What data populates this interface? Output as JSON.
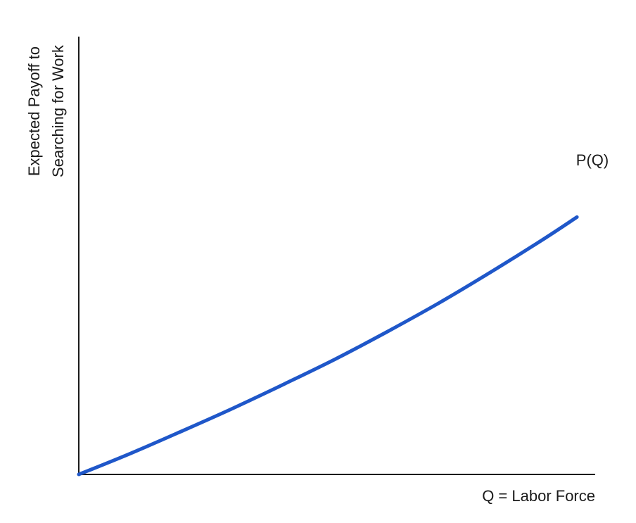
{
  "chart_data": {
    "type": "line",
    "title": "",
    "xlabel": "Q = Labor Force",
    "ylabel_lines": [
      "Expected Payoff to",
      "Searching for Work"
    ],
    "xlim": [
      0,
      1
    ],
    "ylim": [
      0,
      1
    ],
    "grid": false,
    "ticks": false,
    "series": [
      {
        "name": "P(Q)",
        "label": "P(Q)",
        "color": "#1f57c9",
        "x": [
          0,
          0.1,
          0.2,
          0.3,
          0.4,
          0.5,
          0.6,
          0.7,
          0.8,
          0.9,
          0.97
        ],
        "y": [
          0,
          0.06,
          0.124,
          0.19,
          0.26,
          0.332,
          0.41,
          0.492,
          0.58,
          0.672,
          0.74
        ]
      }
    ]
  }
}
